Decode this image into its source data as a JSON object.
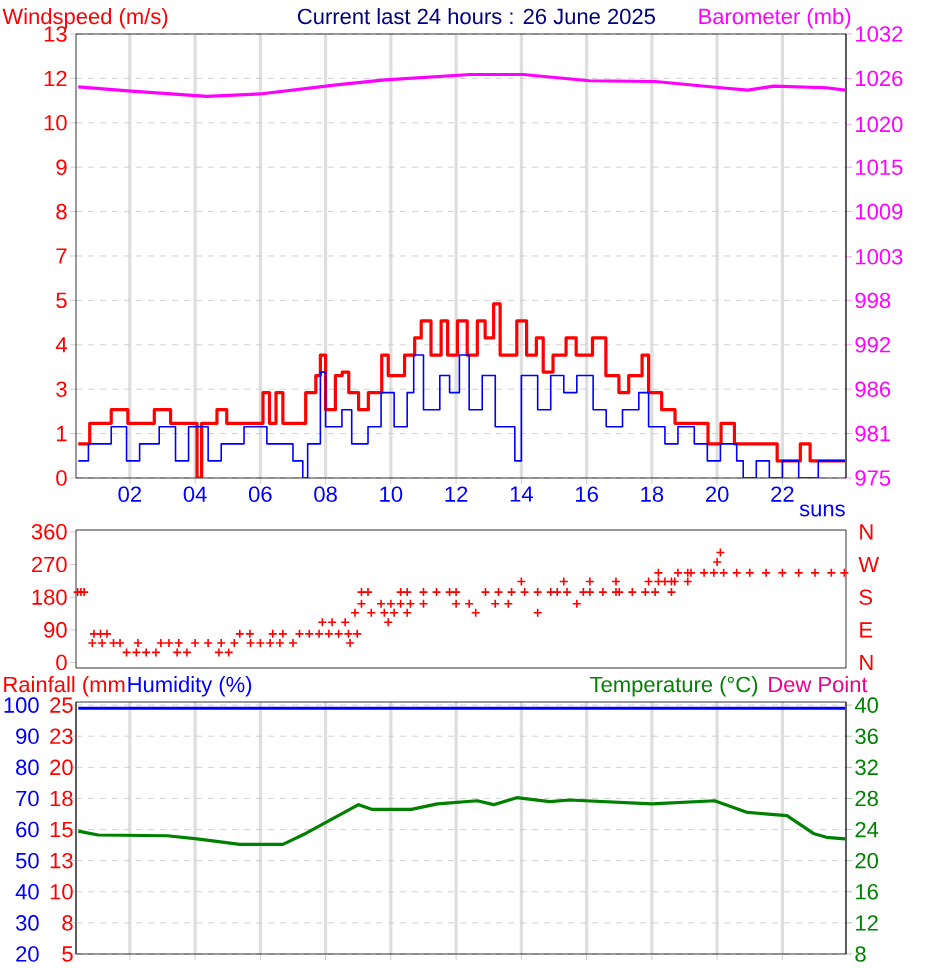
{
  "chart_data": [
    {
      "type": "line",
      "title": "Current last 24 hours : 26 June 2025",
      "ylabel": "Windspeed (m/s)",
      "y2label": "Barometer (mb)",
      "annotations": [
        "suns"
      ],
      "xlim": [
        0.35,
        23.95
      ],
      "xticks": [
        {
          "value": 2,
          "label": "02"
        },
        {
          "value": 4,
          "label": "04"
        },
        {
          "value": 6,
          "label": "06"
        },
        {
          "value": 8,
          "label": "08"
        },
        {
          "value": 10,
          "label": "10"
        },
        {
          "value": 12,
          "label": "12"
        },
        {
          "value": 14,
          "label": "14"
        },
        {
          "value": 16,
          "label": "16"
        },
        {
          "value": 18,
          "label": "18"
        },
        {
          "value": 20,
          "label": "20"
        },
        {
          "value": 22,
          "label": "22"
        }
      ],
      "ylim": [
        0,
        13
      ],
      "yticks": [
        0,
        {
          "value": 1.3,
          "label": "1"
        },
        {
          "value": 2.6,
          "label": "3"
        },
        {
          "value": 3.9,
          "label": "4"
        },
        {
          "value": 5.2,
          "label": "5"
        },
        {
          "value": 6.5,
          "label": "7"
        },
        {
          "value": 7.8,
          "label": "8"
        },
        {
          "value": 9.1,
          "label": "9"
        },
        {
          "value": 10.4,
          "label": "10"
        },
        {
          "value": 11.7,
          "label": "12"
        },
        13
      ],
      "y2lim": [
        975,
        1032
      ],
      "y2ticks": [
        975,
        {
          "value": 980.7,
          "label": "981"
        },
        {
          "value": 986.4,
          "label": "986"
        },
        {
          "value": 992.1,
          "label": "992"
        },
        {
          "value": 997.8,
          "label": "998"
        },
        {
          "value": 1003.4,
          "label": "1003"
        },
        {
          "value": 1009.2,
          "label": "1009"
        },
        {
          "value": 1014.9,
          "label": "1015"
        },
        {
          "value": 1020.4,
          "label": "1020"
        },
        {
          "value": 1026.3,
          "label": "1026"
        },
        1032
      ],
      "grid": true,
      "series": [
        {
          "type": "step",
          "color": "#ff0000",
          "x": [
            0.42,
            0.77,
            1.43,
            1.94,
            2.75,
            3.25,
            4.06,
            4.2,
            4.67,
            4.97,
            6.08,
            6.28,
            6.48,
            6.69,
            7.39,
            7.7,
            7.84,
            8.0,
            8.3,
            8.51,
            8.71,
            9.01,
            9.31,
            9.72,
            9.92,
            10.12,
            10.42,
            10.73,
            10.93,
            11.23,
            11.54,
            11.74,
            12.04,
            12.34,
            12.65,
            12.89,
            13.15,
            13.35,
            13.86,
            14.16,
            14.46,
            14.67,
            14.97,
            15.37,
            15.68,
            16.18,
            16.59,
            16.99,
            17.29,
            17.7,
            17.9,
            18.3,
            18.71,
            19.72,
            20.12,
            20.53,
            21.54,
            21.84,
            22.55,
            22.85,
            23.92
          ],
          "values": [
            1.0,
            1.6,
            2.0,
            1.6,
            2.0,
            1.6,
            0,
            1.6,
            2.0,
            1.6,
            2.5,
            1.6,
            2.5,
            1.6,
            2.5,
            3.0,
            3.6,
            2.0,
            3.0,
            3.1,
            2.5,
            2.0,
            2.5,
            3.6,
            3.0,
            3.0,
            3.6,
            4.1,
            4.6,
            3.6,
            4.6,
            3.6,
            4.6,
            3.6,
            4.6,
            4.1,
            5.1,
            3.6,
            4.6,
            3.6,
            4.1,
            3.1,
            3.6,
            4.1,
            3.6,
            4.1,
            3.0,
            2.5,
            3.0,
            3.6,
            2.5,
            2.0,
            1.6,
            1.0,
            1.6,
            1.0,
            1.0,
            0.5,
            1.0,
            0.5,
            0.5
          ]
        },
        {
          "type": "step",
          "color": "#0000ff",
          "x": [
            0.42,
            0.73,
            1.43,
            1.9,
            2.3,
            2.9,
            3.4,
            3.8,
            4.4,
            4.8,
            5.5,
            6.2,
            7.0,
            7.3,
            7.45,
            7.84,
            8.0,
            8.5,
            8.8,
            9.3,
            9.7,
            10.1,
            10.5,
            10.7,
            11.0,
            11.5,
            11.8,
            12.1,
            12.4,
            12.8,
            13.2,
            13.8,
            14.0,
            14.5,
            14.9,
            15.3,
            15.7,
            16.2,
            16.6,
            17.1,
            17.6,
            17.9,
            18.4,
            18.8,
            19.3,
            19.7,
            20.1,
            20.6,
            20.8,
            21.2,
            21.6,
            22.0,
            22.5,
            23.1,
            23.92
          ],
          "values": [
            0.5,
            1.0,
            1.5,
            0.5,
            1.0,
            1.5,
            0.5,
            1.5,
            0.5,
            1.0,
            1.5,
            1.0,
            0.5,
            0,
            1.0,
            3.1,
            1.5,
            2.0,
            1.0,
            1.5,
            2.5,
            1.5,
            2.5,
            3.6,
            2.0,
            3.0,
            2.5,
            3.6,
            2.0,
            3.0,
            1.5,
            0.5,
            3.0,
            2.0,
            3.0,
            2.5,
            3.0,
            2.0,
            1.5,
            2.0,
            2.5,
            1.5,
            1.0,
            1.5,
            1.0,
            0.5,
            1.0,
            0.5,
            0,
            0.5,
            0,
            0.5,
            0,
            0.5,
            0.5
          ]
        },
        {
          "type": "line",
          "axis": "y2",
          "color": "#ff00ff",
          "x": [
            0.42,
            1.94,
            4.36,
            5.98,
            8.4,
            9.82,
            12.44,
            14.06,
            16.08,
            18.1,
            20.12,
            20.93,
            21.74,
            23.35,
            23.92
          ],
          "values": [
            1025.2,
            1024.7,
            1024.0,
            1024.3,
            1025.5,
            1026.1,
            1026.8,
            1026.8,
            1026.0,
            1025.9,
            1025.1,
            1024.8,
            1025.3,
            1025.1,
            1024.8
          ]
        }
      ]
    },
    {
      "type": "scatter",
      "marker": "cross",
      "tick_labels": "y",
      "xlim": [
        0.35,
        23.95
      ],
      "annotations": [
        "N",
        "E",
        "S",
        "W",
        "N"
      ],
      "ylim": [
        -15,
        365
      ],
      "yticks": [
        0,
        90,
        180,
        270,
        360
      ],
      "series": [
        {
          "color": "#ff0000",
          "x": [
            0.4,
            0.5,
            0.6,
            0.85,
            0.9,
            1.1,
            1.15,
            1.3,
            1.5,
            1.7,
            1.9,
            2.2,
            2.25,
            2.5,
            2.8,
            2.95,
            3.2,
            3.45,
            3.5,
            3.75,
            4.0,
            4.4,
            4.73,
            4.8,
            5.03,
            5.2,
            5.37,
            5.68,
            5.7,
            6.0,
            6.3,
            6.38,
            6.6,
            6.69,
            7.0,
            7.2,
            7.5,
            7.8,
            7.9,
            8.1,
            8.2,
            8.4,
            8.6,
            8.7,
            8.75,
            8.9,
            8.97,
            9.1,
            9.1,
            9.3,
            9.4,
            9.7,
            9.8,
            9.92,
            10.0,
            10.1,
            10.3,
            10.3,
            10.5,
            10.5,
            10.6,
            11.0,
            11.0,
            11.4,
            11.8,
            12.0,
            12.0,
            12.4,
            12.6,
            12.9,
            13.2,
            13.3,
            13.6,
            13.7,
            14.0,
            14.1,
            14.5,
            14.5,
            14.9,
            15.1,
            15.3,
            15.4,
            15.7,
            15.9,
            16.1,
            16.1,
            16.5,
            16.9,
            16.9,
            17.0,
            17.4,
            17.8,
            17.9,
            18.1,
            18.2,
            18.2,
            18.4,
            18.6,
            18.6,
            18.7,
            18.8,
            19.1,
            19.1,
            19.2,
            19.6,
            19.9,
            20.0,
            20.1,
            20.2,
            20.6,
            21.0,
            21.5,
            22.0,
            22.5,
            23.0,
            23.5,
            23.9
          ],
          "values": [
            194,
            194,
            194,
            54,
            79,
            79,
            54,
            79,
            54,
            54,
            28,
            28,
            54,
            28,
            28,
            54,
            54,
            28,
            54,
            28,
            54,
            54,
            28,
            54,
            28,
            54,
            79,
            79,
            54,
            54,
            54,
            79,
            54,
            79,
            54,
            79,
            79,
            79,
            111,
            79,
            111,
            79,
            111,
            79,
            54,
            137,
            79,
            194,
            162,
            194,
            137,
            162,
            137,
            111,
            162,
            137,
            194,
            162,
            194,
            137,
            162,
            162,
            194,
            194,
            194,
            194,
            162,
            162,
            137,
            194,
            162,
            194,
            162,
            194,
            223,
            194,
            194,
            137,
            194,
            194,
            223,
            194,
            162,
            194,
            223,
            194,
            194,
            194,
            223,
            194,
            194,
            194,
            223,
            194,
            223,
            247,
            223,
            194,
            223,
            223,
            247,
            223,
            247,
            247,
            247,
            247,
            277,
            303,
            247,
            247,
            247,
            247,
            247,
            247,
            247,
            247,
            247
          ]
        }
      ]
    },
    {
      "type": "line",
      "ylabel": "Humidity (%)",
      "y3label": "Rainfall (mm",
      "y2label": "Temperature (°C)",
      "annotations": [
        "Dew Point"
      ],
      "tick_labels": "y",
      "grid": true,
      "xlim": [
        0.35,
        23.95
      ],
      "xticks": [
        2,
        4,
        6,
        8,
        10,
        12,
        14,
        16,
        18,
        20,
        22
      ],
      "ylim": [
        20,
        101
      ],
      "yticks": [
        20,
        30,
        40,
        50,
        60,
        70,
        80,
        90,
        100
      ],
      "y3lim": [
        5,
        25.25
      ],
      "y3ticks": [
        5,
        {
          "value": 7.5,
          "label": "8"
        },
        10,
        {
          "value": 12.5,
          "label": "13"
        },
        15,
        {
          "value": 17.5,
          "label": "18"
        },
        20,
        {
          "value": 22.5,
          "label": "23"
        },
        25
      ],
      "y2lim": [
        8,
        40.4
      ],
      "y2ticks": [
        8,
        12,
        16,
        20,
        24,
        28,
        32,
        36,
        40
      ],
      "series": [
        {
          "color": "#0000ff",
          "x": [
            0.42,
            23.92
          ],
          "values": [
            99,
            99
          ]
        },
        {
          "axis": "y2",
          "color": "#008000",
          "x": [
            0.42,
            1.03,
            3.15,
            4.06,
            5.37,
            6.69,
            7.39,
            9.01,
            9.41,
            10.63,
            11.43,
            12.65,
            13.15,
            13.86,
            14.87,
            15.47,
            18.0,
            19.92,
            20.93,
            22.14,
            22.95,
            23.35,
            23.92
          ],
          "values": [
            23.8,
            23.3,
            23.2,
            22.8,
            22.1,
            22.1,
            23.5,
            27.2,
            26.6,
            26.6,
            27.3,
            27.7,
            27.2,
            28.1,
            27.6,
            27.8,
            27.3,
            27.7,
            26.2,
            25.8,
            23.5,
            23.0,
            22.8
          ]
        }
      ]
    }
  ]
}
